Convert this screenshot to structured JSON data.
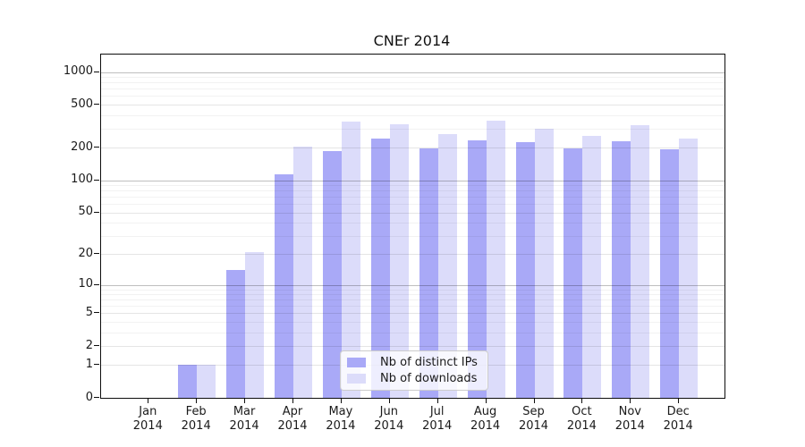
{
  "chart_data": {
    "type": "bar",
    "title": "CNEr 2014",
    "categories": [
      "Jan 2014",
      "Feb 2014",
      "Mar 2014",
      "Apr 2014",
      "May 2014",
      "Jun 2014",
      "Jul 2014",
      "Aug 2014",
      "Sep 2014",
      "Oct 2014",
      "Nov 2014",
      "Dec 2014"
    ],
    "series": [
      {
        "name": "Nb of distinct IPs",
        "color": "#a9a9f7",
        "values": [
          0,
          1,
          14,
          114,
          188,
          243,
          197,
          236,
          225,
          197,
          230,
          195
        ]
      },
      {
        "name": "Nb of downloads",
        "color": "#dcdcfa",
        "values": [
          0,
          1,
          21,
          205,
          350,
          329,
          267,
          355,
          302,
          258,
          321,
          245
        ]
      }
    ],
    "xlabel": "",
    "ylabel": "",
    "y_ticks": [
      0,
      1,
      2,
      5,
      10,
      20,
      50,
      100,
      200,
      500,
      1000
    ],
    "scale": "log1p",
    "ylim": [
      0,
      1450
    ],
    "grid": {
      "on": true,
      "major_values": [
        10,
        100,
        1000
      ],
      "labeled_minor_values": [
        1,
        2,
        5,
        20,
        50,
        200,
        500
      ],
      "major_color": "rgba(0,0,0,0.25)",
      "labeled_minor_color": "rgba(0,0,0,0.10)",
      "minor_color": "rgba(0,0,0,0.05)"
    },
    "legend_position": "bottom-center",
    "axis_color": "#0d0d0d",
    "background_color": "#ffffff"
  }
}
